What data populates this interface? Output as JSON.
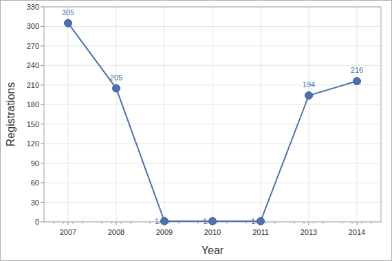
{
  "chart_data": {
    "type": "line",
    "x_label": "Year",
    "y_label": "Registrations",
    "categories": [
      "2007",
      "2008",
      "2009",
      "2010",
      "2011",
      "2013",
      "2014"
    ],
    "values": [
      305,
      205,
      1,
      1,
      1,
      194,
      216
    ],
    "color": "#4a72b0",
    "marker": "circle",
    "line_style": "solid",
    "ylim": [
      0,
      330
    ],
    "yticks": [
      0,
      30,
      60,
      90,
      120,
      150,
      180,
      210,
      240,
      270,
      300,
      330
    ],
    "grid": true,
    "data_labels": true
  }
}
